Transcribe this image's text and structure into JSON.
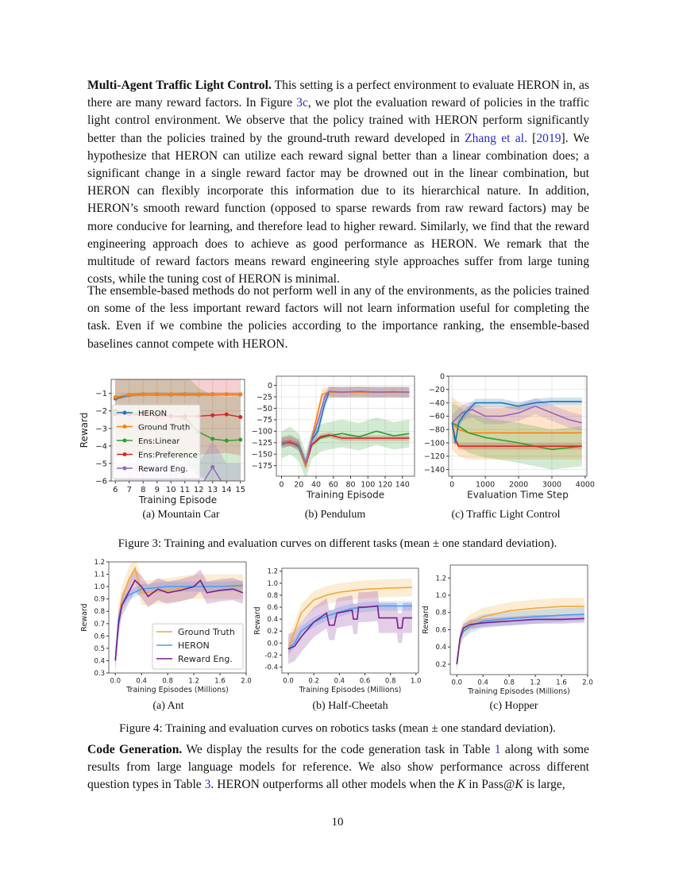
{
  "paragraph1": {
    "heading": "Multi-Agent Traffic Light Control.",
    "t1": " This setting is a perfect environment to evaluate HERON in, as there are many reward factors. In Figure ",
    "link1": "3c",
    "t2": ", we plot the evaluation reward of policies in the traffic light control environment. We observe that the policy trained with HERON perform significantly better than the policies trained by the ground-truth reward developed in ",
    "link2": "Zhang et al.",
    "t3": " [",
    "link3": "2019",
    "t4": "]. We hypothesize that HERON can utilize each reward signal better than a linear combination does; a significant change in a single reward factor may be drowned out in the linear combination, but HERON can flexibly incorporate this information due to its hierarchical nature. In addition, HERON’s smooth reward function (opposed to sparse rewards from raw reward factors) may be more conducive for learning, and therefore lead to higher reward. Similarly, we find that the reward engineering approach does to achieve as good performance as HERON. We remark that the multitude of reward factors means reward engineering style approaches suffer from large tuning costs, while the tuning cost of HERON is minimal."
  },
  "paragraph2": "The ensemble-based methods do not perform well in any of the environments, as the policies trained on some of the less important reward factors will not learn information useful for completing the task. Even if we combine the policies according to the importance ranking, the ensemble-based baselines cannot compete with HERON.",
  "figure3": {
    "subcaptions": [
      "(a) Mountain Car",
      "(b) Pendulum",
      "(c) Traffic Light Control"
    ],
    "caption": "Figure 3: Training and evaluation curves on different tasks (mean ± one standard deviation)."
  },
  "figure4": {
    "subcaptions": [
      "(a) Ant",
      "(b) Half-Cheetah",
      "(c) Hopper"
    ],
    "caption": "Figure 4: Training and evaluation curves on robotics tasks (mean ± one standard deviation)."
  },
  "paragraph3": {
    "heading": "Code Generation.",
    "t1": " We display the results for the code generation task in Table ",
    "link1": "1",
    "t2": " along with some results from large language models for reference. We also show performance across different question types in Table ",
    "link2": "3",
    "t3": ". HERON outperforms all other models when the ",
    "k1": "K",
    "t4": " in Pass@",
    "k2": "K",
    "t5": " is large,"
  },
  "page_number": "10",
  "chart_data": [
    {
      "id": "mountain-car",
      "type": "line",
      "xlabel": "Training Episode",
      "ylabel": "Reward",
      "xlim": [
        5.7,
        15.3
      ],
      "ylim": [
        -6,
        -0.2
      ],
      "xticks": [
        6,
        7,
        8,
        9,
        10,
        11,
        12,
        13,
        14,
        15
      ],
      "yticks": [
        -1,
        -2,
        -3,
        -4,
        -5,
        -6
      ],
      "markers": true,
      "grid": true,
      "legend": "center-left",
      "series": [
        {
          "name": "HERON",
          "color": "#1f77b4",
          "x": [
            6,
            7,
            8,
            9,
            10,
            11,
            12,
            13,
            14,
            15
          ],
          "y": [
            -1.3,
            -1.1,
            -1.05,
            -1.05,
            -1.06,
            -1.05,
            -1.06,
            -1.05,
            -1.05,
            -1.06
          ],
          "std": 0.1
        },
        {
          "name": "Ground Truth",
          "color": "#ff7f0e",
          "x": [
            6,
            7,
            8,
            9,
            10,
            11,
            12,
            13,
            14,
            15
          ],
          "y": [
            -1.22,
            -1.08,
            -1.05,
            -1.05,
            -1.05,
            -1.05,
            -1.05,
            -1.05,
            -1.05,
            -1.05
          ],
          "std": 0.1
        },
        {
          "name": "Ens:Linear",
          "color": "#2ca02c",
          "x": [
            6,
            7,
            8,
            9,
            10,
            11,
            12,
            13,
            14,
            15
          ],
          "y": [
            -2.0,
            -2.1,
            -2.1,
            -2.2,
            -2.3,
            -2.4,
            -3.2,
            -3.6,
            -3.7,
            -3.65
          ],
          "std": 2.5
        },
        {
          "name": "Ens:Preference",
          "color": "#d62728",
          "x": [
            6,
            7,
            8,
            9,
            10,
            11,
            12,
            13,
            14,
            15
          ],
          "y": [
            -2.2,
            -2.2,
            -2.2,
            -2.3,
            -2.3,
            -2.3,
            -2.3,
            -2.25,
            -2.2,
            -2.35
          ],
          "std": 2.2
        },
        {
          "name": "Reward Eng.",
          "color": "#9467bd",
          "x": [
            6,
            7,
            8,
            9,
            10,
            11,
            12,
            13,
            14,
            15
          ],
          "y": [
            -6.5,
            -6.5,
            -6.5,
            -6.5,
            -6.5,
            -6.5,
            -6.5,
            -5.2,
            -6.5,
            -6.5
          ],
          "std": 1.5
        }
      ]
    },
    {
      "id": "pendulum",
      "type": "line",
      "xlabel": "Training Episode",
      "ylabel": "",
      "xlim": [
        -6,
        154
      ],
      "ylim": [
        -198,
        20
      ],
      "xticks": [
        0,
        20,
        40,
        60,
        80,
        100,
        120,
        140
      ],
      "yticks": [
        0,
        -25,
        -50,
        -75,
        -100,
        -125,
        -150,
        -175
      ],
      "grid": true,
      "series": [
        {
          "name": "Ens:Linear",
          "color": "#2ca02c",
          "x": [
            0,
            10,
            20,
            28,
            35,
            45,
            55,
            70,
            90,
            110,
            130,
            148
          ],
          "y": [
            -130,
            -120,
            -135,
            -175,
            -130,
            -115,
            -110,
            -105,
            -112,
            -100,
            -110,
            -105
          ],
          "std": 30
        },
        {
          "name": "Ens:Preference",
          "color": "#d62728",
          "x": [
            0,
            10,
            20,
            28,
            35,
            45,
            55,
            70,
            90,
            110,
            130,
            148
          ],
          "y": [
            -125,
            -125,
            -130,
            -175,
            -130,
            -112,
            -108,
            -115,
            -115,
            -115,
            -115,
            -115
          ],
          "std": 6
        },
        {
          "name": "HERON",
          "color": "#1f77b4",
          "x": [
            0,
            10,
            20,
            28,
            35,
            42,
            50,
            55,
            70,
            90,
            110,
            130,
            148
          ],
          "y": [
            -125,
            -120,
            -130,
            -170,
            -120,
            -100,
            -40,
            -15,
            -15,
            -15,
            -15,
            -15,
            -15
          ],
          "std": 12
        },
        {
          "name": "Ground Truth",
          "color": "#ff7f0e",
          "x": [
            0,
            10,
            20,
            28,
            35,
            42,
            47,
            55,
            70,
            90,
            110,
            130,
            148
          ],
          "y": [
            -125,
            -120,
            -130,
            -175,
            -115,
            -60,
            -20,
            -15,
            -15,
            -15,
            -15,
            -15,
            -15
          ],
          "std": 12
        },
        {
          "name": "Reward Eng.",
          "color": "#9467bd",
          "x": [
            0,
            10,
            20,
            28,
            35,
            42,
            50,
            55,
            70,
            90,
            110,
            130,
            148
          ],
          "y": [
            -125,
            -122,
            -130,
            -170,
            -118,
            -80,
            -25,
            -13,
            -15,
            -13,
            -15,
            -14,
            -15
          ],
          "std": 10
        }
      ]
    },
    {
      "id": "traffic-light",
      "type": "line",
      "xlabel": "Evaluation Time Step",
      "ylabel": "",
      "xlim": [
        -100,
        4050
      ],
      "ylim": [
        -150,
        0
      ],
      "xticks": [
        0,
        1000,
        2000,
        3000,
        4000
      ],
      "yticks": [
        0,
        -20,
        -40,
        -60,
        -80,
        -100,
        -120,
        -140
      ],
      "grid": true,
      "series": [
        {
          "name": "Ground Truth",
          "color": "#ff7f0e",
          "x": [
            0,
            200,
            500,
            1000,
            2000,
            3000,
            3900
          ],
          "y": [
            -70,
            -80,
            -85,
            -85,
            -85,
            -85,
            -85
          ],
          "std": 40
        },
        {
          "name": "Ens:Linear",
          "color": "#2ca02c",
          "x": [
            0,
            200,
            500,
            1000,
            2000,
            3000,
            3900
          ],
          "y": [
            -70,
            -75,
            -85,
            -92,
            -100,
            -110,
            -105
          ],
          "std": 30
        },
        {
          "name": "Ens:Preference",
          "color": "#d62728",
          "x": [
            0,
            100,
            200,
            500,
            1000,
            2000,
            3000,
            3900
          ],
          "y": [
            -70,
            -95,
            -105,
            -105,
            -105,
            -105,
            -105,
            -105
          ],
          "std": 5
        },
        {
          "name": "Reward Eng.",
          "color": "#9467bd",
          "x": [
            0,
            300,
            600,
            1000,
            1500,
            2000,
            2500,
            3000,
            3500,
            3900
          ],
          "y": [
            -70,
            -55,
            -50,
            -60,
            -60,
            -55,
            -45,
            -55,
            -65,
            -70
          ],
          "std": 12
        },
        {
          "name": "HERON",
          "color": "#1f77b4",
          "x": [
            0,
            100,
            200,
            400,
            700,
            1000,
            1500,
            2000,
            2500,
            3000,
            3500,
            3900
          ],
          "y": [
            -70,
            -100,
            -70,
            -55,
            -40,
            -40,
            -40,
            -45,
            -40,
            -38,
            -38,
            -38
          ],
          "std": 6
        }
      ]
    },
    {
      "id": "ant",
      "type": "line",
      "xlabel": "Training Episodes (Millions)",
      "ylabel": "Reward",
      "xlim": [
        -0.1,
        2.0
      ],
      "ylim": [
        0.3,
        1.2
      ],
      "xticks": [
        0,
        0.4,
        0.8,
        1.2,
        1.6,
        2.0
      ],
      "yticks": [
        0.3,
        0.4,
        0.5,
        0.6,
        0.7,
        0.8,
        0.9,
        1.0,
        1.1,
        1.2
      ],
      "grid": false,
      "legend": "lower-right",
      "series": [
        {
          "name": "Ground Truth",
          "color": "#f2a93b",
          "x": [
            0,
            0.05,
            0.1,
            0.2,
            0.3,
            0.4,
            0.5,
            0.8,
            1.2,
            1.6,
            1.95
          ],
          "y": [
            0.4,
            0.75,
            0.9,
            1.05,
            1.15,
            0.95,
            0.95,
            0.97,
            1.0,
            1.0,
            1.0
          ],
          "std": 0.1
        },
        {
          "name": "HERON",
          "color": "#4a9ff5",
          "x": [
            0,
            0.05,
            0.1,
            0.2,
            0.4,
            0.8,
            1.2,
            1.6,
            1.95
          ],
          "y": [
            0.4,
            0.75,
            0.85,
            0.93,
            0.98,
            1.0,
            1.0,
            1.0,
            1.01
          ],
          "std": 0.04
        },
        {
          "name": "Reward Eng.",
          "color": "#7b1e8c",
          "x": [
            0,
            0.05,
            0.1,
            0.2,
            0.3,
            0.4,
            0.5,
            0.65,
            0.8,
            1.0,
            1.2,
            1.3,
            1.4,
            1.6,
            1.8,
            1.95
          ],
          "y": [
            0.4,
            0.7,
            0.85,
            0.95,
            1.05,
            1.0,
            0.92,
            0.98,
            0.95,
            0.97,
            1.0,
            1.05,
            0.95,
            0.97,
            0.98,
            0.95
          ],
          "std": 0.09
        }
      ]
    },
    {
      "id": "half-cheetah",
      "type": "line",
      "xlabel": "Training Episodes (Millions)",
      "ylabel": "Reward",
      "xlim": [
        -0.05,
        1.02
      ],
      "ylim": [
        -0.5,
        1.25
      ],
      "xticks": [
        0,
        0.2,
        0.4,
        0.6,
        0.8,
        1.0
      ],
      "yticks": [
        -0.4,
        -0.2,
        0.0,
        0.2,
        0.4,
        0.6,
        0.8,
        1.0,
        1.2
      ],
      "grid": false,
      "series": [
        {
          "name": "Ground Truth",
          "color": "#f2a93b",
          "x": [
            0,
            0.05,
            0.1,
            0.2,
            0.3,
            0.4,
            0.6,
            0.8,
            0.97
          ],
          "y": [
            -0.1,
            0.2,
            0.5,
            0.72,
            0.8,
            0.85,
            0.9,
            0.92,
            0.93
          ],
          "std": 0.15
        },
        {
          "name": "HERON",
          "color": "#4a9ff5",
          "x": [
            0,
            0.05,
            0.1,
            0.2,
            0.3,
            0.4,
            0.5,
            0.6,
            0.7,
            0.8,
            0.97
          ],
          "y": [
            -0.1,
            0.0,
            0.2,
            0.35,
            0.45,
            0.52,
            0.58,
            0.6,
            0.62,
            0.62,
            0.62
          ],
          "std": 0.08
        },
        {
          "name": "Reward Eng.",
          "color": "#7b1e8c",
          "x": [
            0,
            0.05,
            0.1,
            0.2,
            0.3,
            0.32,
            0.36,
            0.38,
            0.5,
            0.51,
            0.54,
            0.55,
            0.6,
            0.7,
            0.71,
            0.72,
            0.85,
            0.86,
            0.89,
            0.9,
            0.97
          ],
          "y": [
            -0.1,
            -0.05,
            0.1,
            0.35,
            0.5,
            0.3,
            0.3,
            0.5,
            0.55,
            0.4,
            0.4,
            0.6,
            0.6,
            0.62,
            0.42,
            0.42,
            0.42,
            0.25,
            0.25,
            0.42,
            0.42
          ],
          "std": 0.25
        }
      ]
    },
    {
      "id": "hopper",
      "type": "line",
      "xlabel": "Training Episodes (Millions)",
      "ylabel": "Reward",
      "xlim": [
        -0.1,
        2.0
      ],
      "ylim": [
        0.08,
        1.35
      ],
      "xticks": [
        0,
        0.4,
        0.8,
        1.2,
        1.6,
        2.0
      ],
      "yticks": [
        0.2,
        0.4,
        0.6,
        0.8,
        1.0,
        1.2
      ],
      "grid": false,
      "series": [
        {
          "name": "Ground Truth",
          "color": "#f2a93b",
          "x": [
            0,
            0.05,
            0.1,
            0.2,
            0.4,
            0.8,
            1.2,
            1.6,
            1.95
          ],
          "y": [
            0.2,
            0.5,
            0.6,
            0.68,
            0.75,
            0.82,
            0.85,
            0.87,
            0.87
          ],
          "std": 0.1
        },
        {
          "name": "HERON",
          "color": "#4a9ff5",
          "x": [
            0,
            0.05,
            0.1,
            0.2,
            0.4,
            0.8,
            1.2,
            1.6,
            1.95
          ],
          "y": [
            0.2,
            0.5,
            0.58,
            0.64,
            0.7,
            0.73,
            0.75,
            0.77,
            0.78
          ],
          "std": 0.08
        },
        {
          "name": "Reward Eng.",
          "color": "#7b1e8c",
          "x": [
            0,
            0.05,
            0.1,
            0.2,
            0.4,
            0.8,
            1.2,
            1.6,
            1.95
          ],
          "y": [
            0.2,
            0.5,
            0.62,
            0.66,
            0.68,
            0.7,
            0.72,
            0.72,
            0.73
          ],
          "std": 0.05
        }
      ]
    }
  ]
}
